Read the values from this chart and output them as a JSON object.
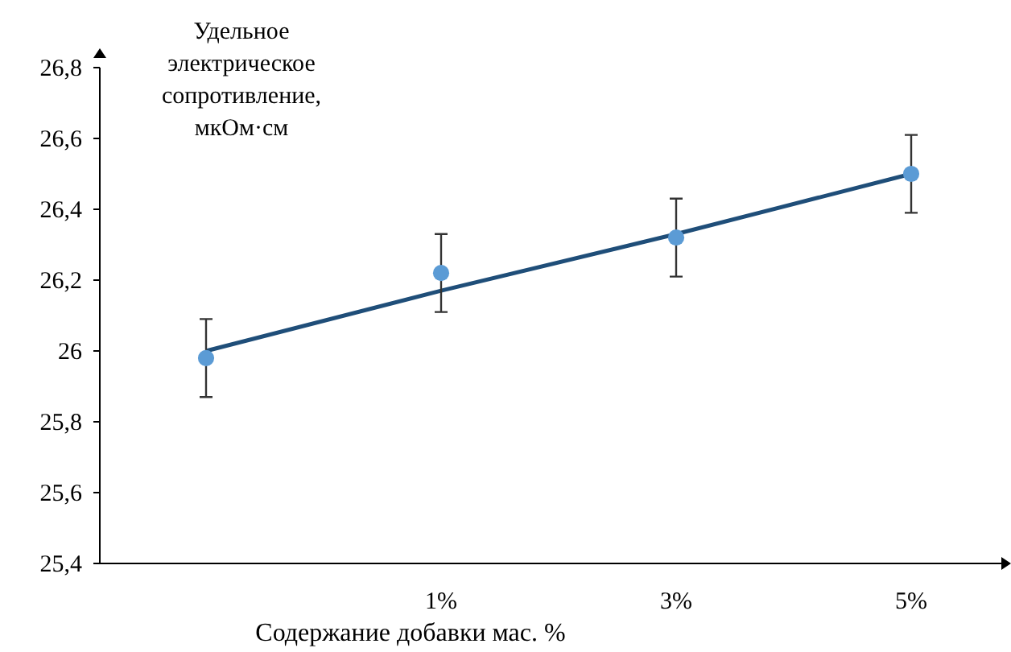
{
  "chart_data": {
    "type": "scatter",
    "ylabel": "Удельное\nэлектрическое\nсопротивление,\nмкОм·см",
    "xlabel": "Содержание добавки мас. %",
    "categories": [
      null,
      "1%",
      "3%",
      "5%"
    ],
    "ylim": [
      25.4,
      26.8
    ],
    "yticks": [
      {
        "value": 25.4,
        "label": "25,4"
      },
      {
        "value": 25.6,
        "label": "25,6"
      },
      {
        "value": 25.8,
        "label": "25,8"
      },
      {
        "value": 26,
        "label": "26"
      },
      {
        "value": 26.2,
        "label": "26,2"
      },
      {
        "value": 26.4,
        "label": "26,4"
      },
      {
        "value": 26.6,
        "label": "26,6"
      },
      {
        "value": 26.8,
        "label": "26,8"
      }
    ],
    "grid": false,
    "series": [
      {
        "type": "line",
        "color": "#1f4e79",
        "values": [
          26.0,
          26.17,
          26.33,
          26.5
        ]
      },
      {
        "marker": "circle",
        "color": "#5b9bd5",
        "values": [
          25.98,
          26.22,
          26.32,
          26.5
        ],
        "errors": [
          0.11,
          0.11,
          0.11,
          0.11
        ]
      }
    ]
  }
}
